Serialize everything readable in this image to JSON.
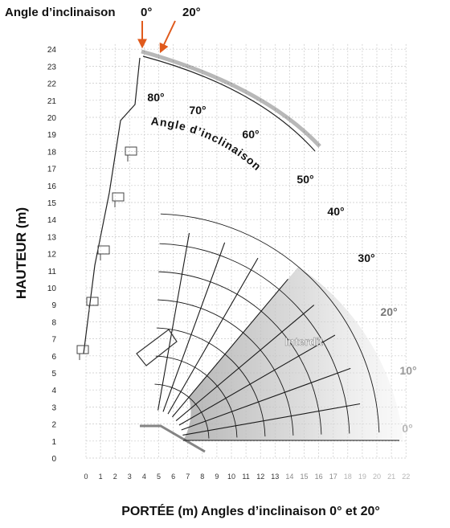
{
  "header": {
    "tilt_label": "Angle d’inclinaison",
    "tilt_0": "0°",
    "tilt_20": "20°"
  },
  "axes": {
    "ylabel": "HAUTEUR (m)",
    "xlabel": "PORTÉE (m)  Angles d’inclinaison 0° et 20°",
    "y_ticks": [
      "0",
      "1",
      "2",
      "3",
      "4",
      "5",
      "6",
      "7",
      "8",
      "9",
      "10",
      "11",
      "12",
      "13",
      "14",
      "15",
      "16",
      "17",
      "18",
      "19",
      "20",
      "21",
      "22",
      "23",
      "24"
    ],
    "x_ticks": [
      "0",
      "1",
      "2",
      "3",
      "4",
      "5",
      "6",
      "7",
      "8",
      "9",
      "10",
      "11",
      "12",
      "13",
      "14",
      "15",
      "16",
      "17",
      "18",
      "19",
      "20",
      "21",
      "22"
    ]
  },
  "boom_angles": [
    "0°",
    "10°",
    "20°",
    "30°",
    "40°",
    "50°",
    "60°",
    "70°",
    "80°"
  ],
  "arc_label": "Angle d’inclinaison",
  "zone_label": "Interdit",
  "colors": {
    "grid": "#c8c8c8",
    "boom_lines": "#1a1a1a",
    "forbidden_zone": "#bfbfbf",
    "arrow": "#e05a1c",
    "text": "#111111"
  }
}
